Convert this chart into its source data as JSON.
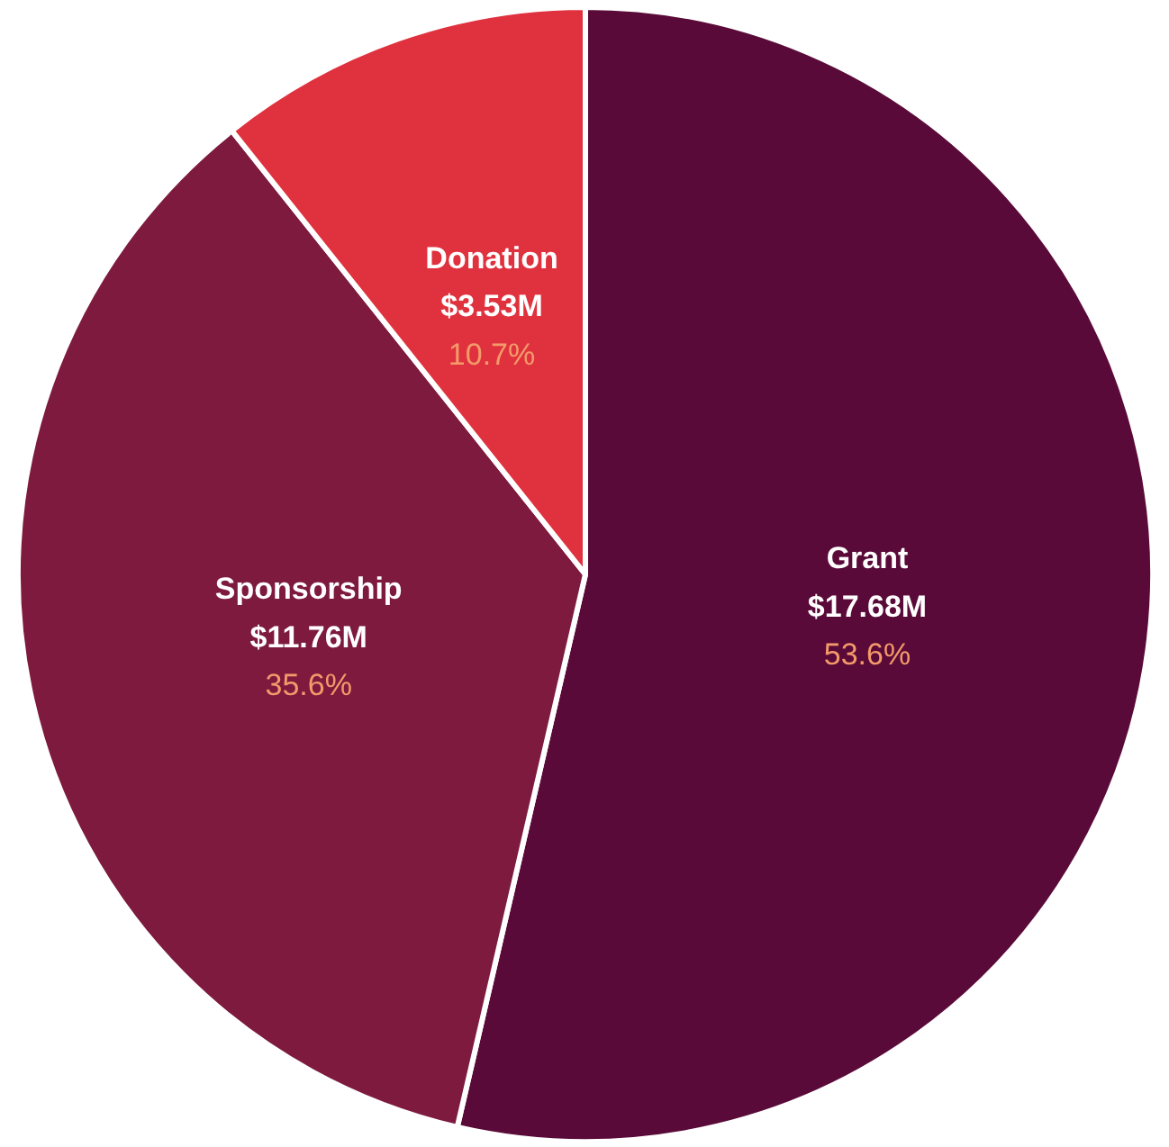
{
  "chart_data": {
    "type": "pie",
    "categories": [
      "Grant",
      "Sponsorship",
      "Donation"
    ],
    "values": [
      17.68,
      11.76,
      3.53
    ],
    "colors": [
      "#5a0a38",
      "#7d1a3e",
      "#e0323e"
    ],
    "value_labels": [
      "$17.68M",
      "$11.76M",
      "$3.53M"
    ],
    "annotations": [
      "53.6%",
      "35.6%",
      "10.7%"
    ]
  }
}
